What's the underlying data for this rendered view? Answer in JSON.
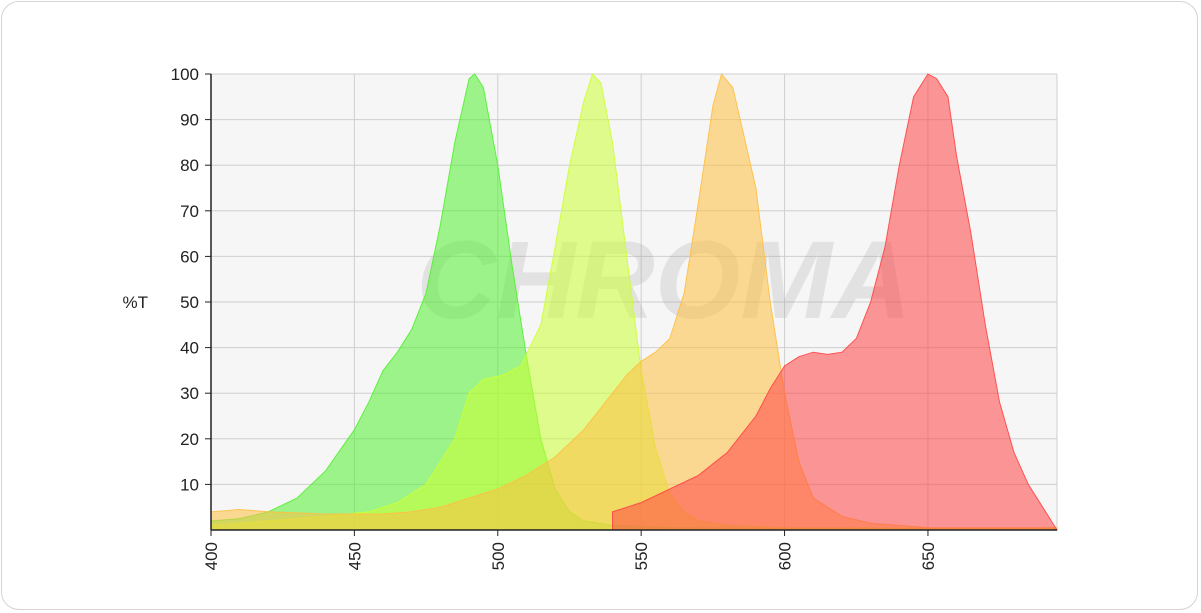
{
  "chart_data": {
    "type": "area",
    "ylabel": "%T",
    "xlim": [
      400,
      695
    ],
    "ylim": [
      0,
      100
    ],
    "x_ticks": [
      400,
      450,
      500,
      550,
      600,
      650
    ],
    "y_ticks": [
      10,
      20,
      30,
      40,
      50,
      60,
      70,
      80,
      90,
      100
    ],
    "grid": true,
    "watermark": "CHROMA",
    "series": [
      {
        "color": "#52f032",
        "points": [
          [
            400,
            2
          ],
          [
            410,
            2.5
          ],
          [
            420,
            4
          ],
          [
            430,
            7
          ],
          [
            440,
            13
          ],
          [
            450,
            22
          ],
          [
            455,
            28
          ],
          [
            460,
            35
          ],
          [
            465,
            39
          ],
          [
            470,
            44
          ],
          [
            475,
            52
          ],
          [
            480,
            67
          ],
          [
            485,
            85
          ],
          [
            490,
            99
          ],
          [
            492,
            100
          ],
          [
            495,
            97
          ],
          [
            500,
            80
          ],
          [
            505,
            58
          ],
          [
            510,
            38
          ],
          [
            515,
            20
          ],
          [
            520,
            9
          ],
          [
            525,
            4
          ],
          [
            530,
            2
          ],
          [
            540,
            1
          ],
          [
            560,
            0.5
          ],
          [
            600,
            0.3
          ],
          [
            695,
            0.3
          ]
        ]
      },
      {
        "color": "#ccff33",
        "points": [
          [
            400,
            1
          ],
          [
            420,
            2
          ],
          [
            440,
            3
          ],
          [
            455,
            4
          ],
          [
            465,
            6
          ],
          [
            475,
            10
          ],
          [
            485,
            20
          ],
          [
            490,
            30
          ],
          [
            495,
            33
          ],
          [
            502,
            34
          ],
          [
            508,
            36
          ],
          [
            515,
            45
          ],
          [
            520,
            62
          ],
          [
            525,
            80
          ],
          [
            530,
            94
          ],
          [
            533,
            100
          ],
          [
            536,
            98
          ],
          [
            540,
            85
          ],
          [
            545,
            60
          ],
          [
            550,
            35
          ],
          [
            555,
            18
          ],
          [
            560,
            8
          ],
          [
            565,
            4
          ],
          [
            570,
            2
          ],
          [
            580,
            1
          ],
          [
            600,
            0.5
          ],
          [
            695,
            0.3
          ]
        ]
      },
      {
        "color": "#ffbf40",
        "points": [
          [
            400,
            4
          ],
          [
            410,
            4.5
          ],
          [
            420,
            4
          ],
          [
            440,
            3.5
          ],
          [
            460,
            3.5
          ],
          [
            470,
            4
          ],
          [
            480,
            5
          ],
          [
            490,
            7
          ],
          [
            500,
            9
          ],
          [
            510,
            12
          ],
          [
            520,
            16
          ],
          [
            530,
            22
          ],
          [
            540,
            30
          ],
          [
            545,
            34
          ],
          [
            550,
            37
          ],
          [
            555,
            39
          ],
          [
            560,
            42
          ],
          [
            565,
            52
          ],
          [
            570,
            72
          ],
          [
            575,
            93
          ],
          [
            578,
            100
          ],
          [
            582,
            97
          ],
          [
            590,
            75
          ],
          [
            595,
            50
          ],
          [
            600,
            30
          ],
          [
            605,
            15
          ],
          [
            610,
            7
          ],
          [
            620,
            3
          ],
          [
            630,
            1.5
          ],
          [
            650,
            0.5
          ],
          [
            695,
            0.5
          ]
        ]
      },
      {
        "color": "#ff4545",
        "points": [
          [
            540,
            0
          ],
          [
            540,
            4
          ],
          [
            550,
            6
          ],
          [
            560,
            9
          ],
          [
            570,
            12
          ],
          [
            580,
            17
          ],
          [
            590,
            25
          ],
          [
            595,
            31
          ],
          [
            600,
            36
          ],
          [
            605,
            38
          ],
          [
            610,
            39
          ],
          [
            615,
            38.5
          ],
          [
            620,
            39
          ],
          [
            625,
            42
          ],
          [
            630,
            50
          ],
          [
            635,
            62
          ],
          [
            640,
            80
          ],
          [
            645,
            95
          ],
          [
            650,
            100
          ],
          [
            653,
            99
          ],
          [
            657,
            95
          ],
          [
            660,
            82
          ],
          [
            665,
            65
          ],
          [
            670,
            45
          ],
          [
            675,
            28
          ],
          [
            680,
            17
          ],
          [
            685,
            10
          ],
          [
            690,
            5
          ],
          [
            693,
            2
          ],
          [
            695,
            0
          ]
        ]
      }
    ]
  }
}
